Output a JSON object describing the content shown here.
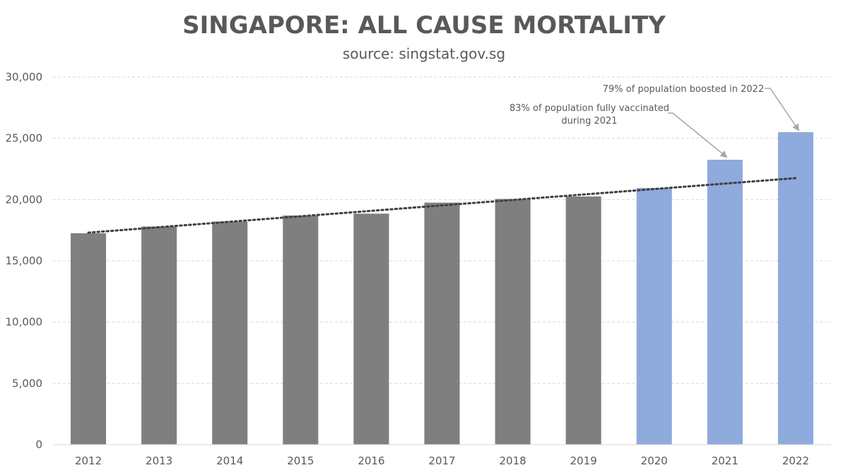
{
  "chart_data": {
    "type": "bar",
    "title": "SINGAPORE: ALL CAUSE MORTALITY",
    "subtitle": "source: singstat.gov.sg",
    "xlabel": "",
    "ylabel": "",
    "ylim": [
      0,
      30000
    ],
    "yticks": [
      0,
      5000,
      10000,
      15000,
      20000,
      25000,
      30000
    ],
    "ytick_labels": [
      "0",
      "5,000",
      "10,000",
      "15,000",
      "20,000",
      "25,000",
      "30,000"
    ],
    "grid": true,
    "legend": "none",
    "categories": [
      "2012",
      "2013",
      "2014",
      "2015",
      "2016",
      "2017",
      "2018",
      "2019",
      "2020",
      "2021",
      "2022"
    ],
    "values": [
      17250,
      17800,
      18200,
      18700,
      18850,
      19750,
      20050,
      20250,
      20950,
      23250,
      25500
    ],
    "bar_colors": [
      "#7f7f7f",
      "#7f7f7f",
      "#7f7f7f",
      "#7f7f7f",
      "#7f7f7f",
      "#7f7f7f",
      "#7f7f7f",
      "#7f7f7f",
      "#8faadc",
      "#8faadc",
      "#8faadc"
    ],
    "trendline": {
      "type": "linear",
      "style": "dotted",
      "color": "#404040",
      "from_category": "2012",
      "to_category": "2022",
      "start": 17300,
      "end": 21750
    },
    "annotations": [
      {
        "lines": [
          "83% of population fully vaccinated",
          "during 2021"
        ],
        "target_category": "2021"
      },
      {
        "lines": [
          "79% of population boosted in 2022"
        ],
        "target_category": "2022"
      }
    ]
  }
}
